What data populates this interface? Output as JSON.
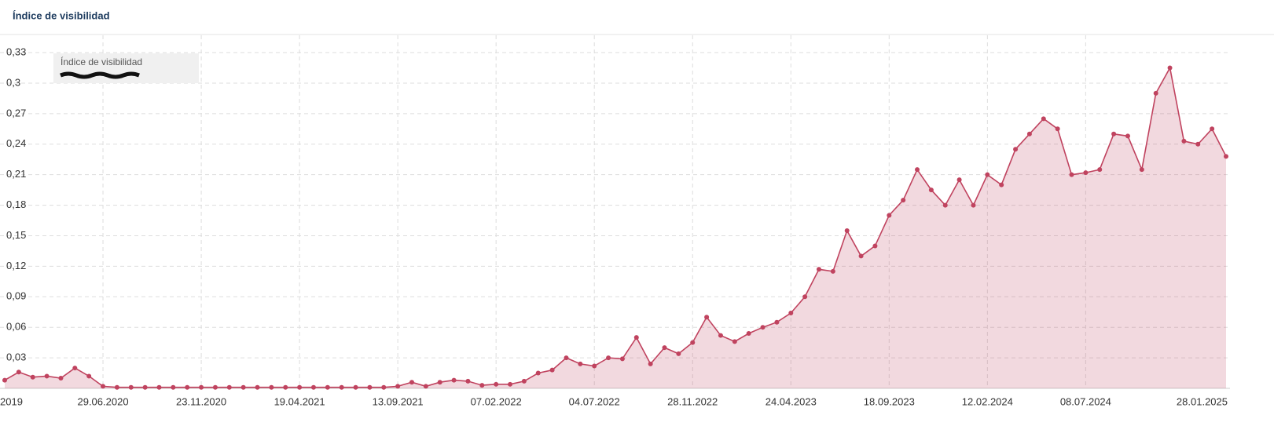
{
  "chart_data": {
    "type": "area",
    "title": "Índice de visibilidad",
    "categories": [
      "2019",
      null,
      null,
      null,
      null,
      null,
      null,
      "29.06.2020",
      null,
      null,
      null,
      null,
      null,
      null,
      "23.11.2020",
      null,
      null,
      null,
      null,
      null,
      null,
      "19.04.2021",
      null,
      null,
      null,
      null,
      null,
      null,
      "13.09.2021",
      null,
      null,
      null,
      null,
      null,
      null,
      "07.02.2022",
      null,
      null,
      null,
      null,
      null,
      null,
      "04.07.2022",
      null,
      null,
      null,
      null,
      null,
      null,
      "28.11.2022",
      null,
      null,
      null,
      null,
      null,
      null,
      "24.04.2023",
      null,
      null,
      null,
      null,
      null,
      null,
      "18.09.2023",
      null,
      null,
      null,
      null,
      null,
      null,
      "12.02.2024",
      null,
      null,
      null,
      null,
      null,
      null,
      "08.07.2024",
      null,
      null,
      null,
      null,
      null,
      null,
      null,
      null,
      null,
      "28.01.2025"
    ],
    "series": [
      {
        "name": "Índice de visibilidad",
        "color": "#c0435f",
        "values": [
          0.008,
          0.016,
          0.011,
          0.012,
          0.01,
          0.02,
          0.012,
          0.002,
          0.001,
          0.001,
          0.001,
          0.001,
          0.001,
          0.001,
          0.001,
          0.001,
          0.001,
          0.001,
          0.001,
          0.001,
          0.001,
          0.001,
          0.001,
          0.001,
          0.001,
          0.001,
          0.001,
          0.001,
          0.002,
          0.006,
          0.002,
          0.006,
          0.008,
          0.007,
          0.003,
          0.004,
          0.004,
          0.007,
          0.015,
          0.018,
          0.03,
          0.024,
          0.022,
          0.03,
          0.029,
          0.05,
          0.024,
          0.04,
          0.034,
          0.045,
          0.07,
          0.052,
          0.046,
          0.054,
          0.06,
          0.065,
          0.074,
          0.09,
          0.117,
          0.115,
          0.155,
          0.13,
          0.14,
          0.17,
          0.185,
          0.215,
          0.195,
          0.18,
          0.205,
          0.18,
          0.21,
          0.2,
          0.235,
          0.25,
          0.265,
          0.255,
          0.21,
          0.212,
          0.215,
          0.25,
          0.248,
          0.215,
          0.29,
          0.315,
          0.243,
          0.24,
          0.255,
          0.228
        ]
      }
    ],
    "ylim": [
      0,
      0.347
    ],
    "yticks": [
      {
        "value": 0.03,
        "label": "0,03"
      },
      {
        "value": 0.06,
        "label": "0,06"
      },
      {
        "value": 0.09,
        "label": "0,09"
      },
      {
        "value": 0.12,
        "label": "0,12"
      },
      {
        "value": 0.15,
        "label": "0,15"
      },
      {
        "value": 0.18,
        "label": "0,18"
      },
      {
        "value": 0.21,
        "label": "0,21"
      },
      {
        "value": 0.24,
        "label": "0,24"
      },
      {
        "value": 0.27,
        "label": "0,27"
      },
      {
        "value": 0.3,
        "label": "0,3"
      },
      {
        "value": 0.33,
        "label": "0,33"
      }
    ],
    "grid": true
  }
}
